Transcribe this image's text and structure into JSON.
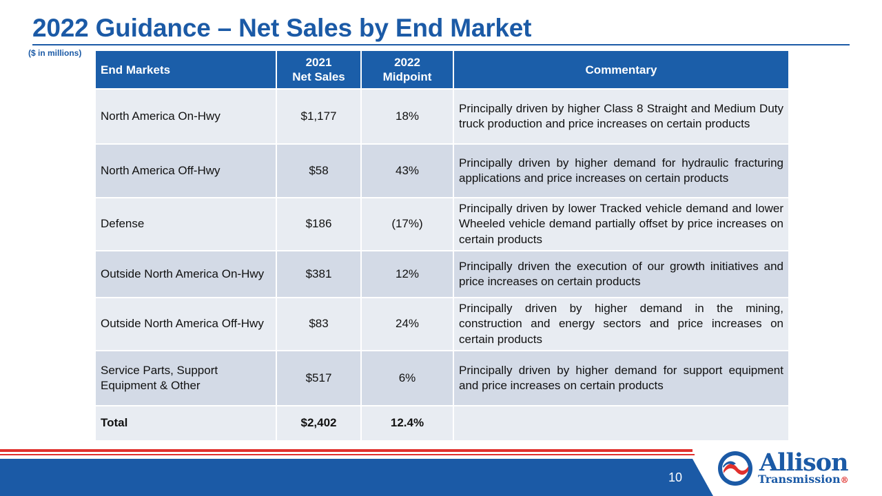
{
  "slide": {
    "title": "2022 Guidance – Net Sales by End Market",
    "units_note": "($ in millions)",
    "page_number": "10"
  },
  "table": {
    "headers": {
      "end_markets": "End Markets",
      "net_sales_2021_line1": "2021",
      "net_sales_2021_line2": "Net Sales",
      "midpoint_2022_line1": "2022",
      "midpoint_2022_line2": "Midpoint",
      "commentary": "Commentary"
    },
    "rows": [
      {
        "market": "North America On-Hwy",
        "net_sales": "$1,177",
        "midpoint": "18%",
        "commentary": "Principally driven by higher Class 8 Straight and Medium Duty truck production and price increases on certain products"
      },
      {
        "market": "North America Off-Hwy",
        "net_sales": "$58",
        "midpoint": "43%",
        "commentary": "Principally driven by higher demand for hydraulic fracturing applications and price increases on certain products"
      },
      {
        "market": "Defense",
        "net_sales": "$186",
        "midpoint": "(17%)",
        "commentary": "Principally driven by lower Tracked vehicle demand and lower Wheeled vehicle demand partially offset by price increases on certain products"
      },
      {
        "market": "Outside North America On-Hwy",
        "net_sales": "$381",
        "midpoint": "12%",
        "commentary": "Principally driven the execution of our growth initiatives and price increases on certain products"
      },
      {
        "market": "Outside North America Off-Hwy",
        "net_sales": "$83",
        "midpoint": "24%",
        "commentary": "Principally driven by higher demand in the mining, construction and energy sectors and price increases on certain products"
      },
      {
        "market": "Service Parts, Support Equipment & Other",
        "net_sales": "$517",
        "midpoint": "6%",
        "commentary": "Principally driven by higher demand for support equipment and price increases on certain products"
      }
    ],
    "total": {
      "label": "Total",
      "net_sales": "$2,402",
      "midpoint": "12.4%",
      "commentary": ""
    }
  },
  "logo": {
    "word1": "Allison",
    "word2": "Transmission",
    "mark": "®",
    "icon": "allison-swirl-icon"
  },
  "colors": {
    "brand_blue": "#1b5aa6",
    "header_blue": "#1b5ea9",
    "accent_red": "#e0302d",
    "row_light": "#e8ecf2",
    "row_dark": "#d3dae6"
  }
}
